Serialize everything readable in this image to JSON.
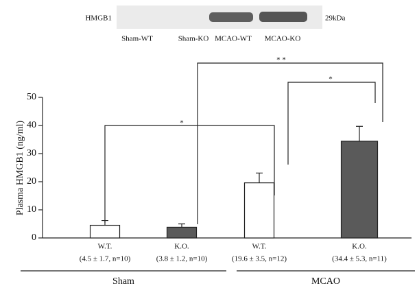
{
  "chart_data": {
    "type": "bar",
    "blot": {
      "label": "HMGB1",
      "marker": "29kDa",
      "lanes": [
        "Sham-WT",
        "Sham-KO",
        "MCAO-WT",
        "MCAO-KO"
      ]
    },
    "y_label": "Plasma HMGB1 (ng/ml)",
    "categories": [
      "W.T.",
      "K.O.",
      "W.T.",
      "K.O."
    ],
    "value_labels": [
      "(4.5 ± 1.7, n=10)",
      "(3.8 ± 1.2, n=10)",
      "(19.6 ± 3.5, n=12)",
      "(34.4 ± 5.3, n=11)"
    ],
    "values": [
      4.5,
      3.8,
      19.6,
      34.4
    ],
    "errors": [
      1.7,
      1.2,
      3.5,
      5.3
    ],
    "colors": [
      "#ffffff",
      "#5a5a5a",
      "#ffffff",
      "#5a5a5a"
    ],
    "groups": [
      "Sham",
      "MCAO"
    ],
    "annotations": [
      "*",
      "* *",
      "*"
    ],
    "ylim": [
      0,
      50
    ],
    "yticks": [
      0,
      10,
      20,
      30,
      40,
      50
    ]
  }
}
